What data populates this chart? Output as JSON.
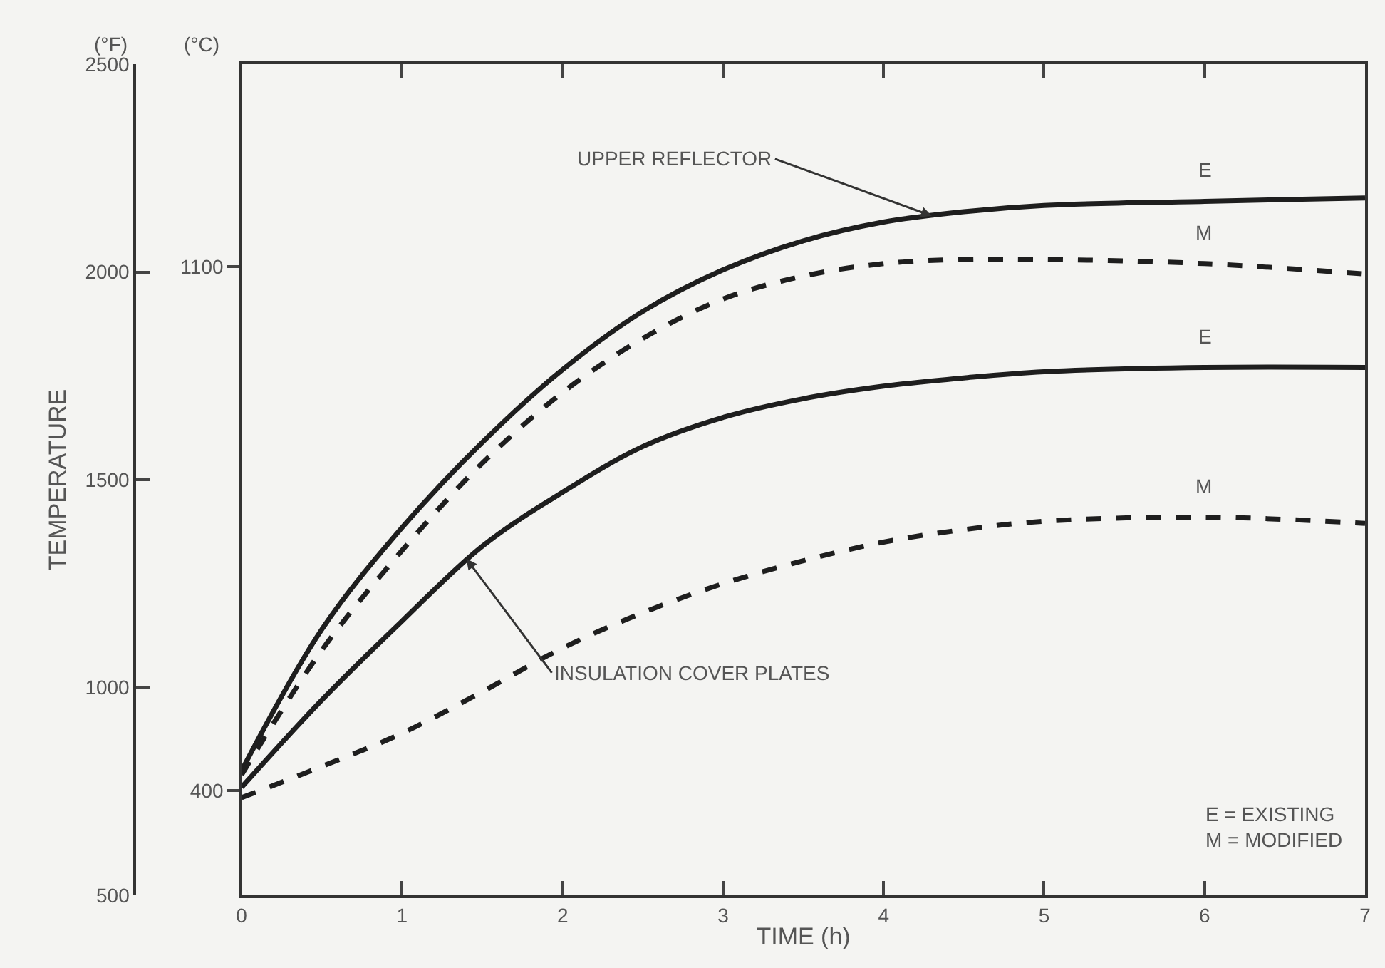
{
  "chart_data": {
    "type": "line",
    "xlabel": "TIME (h)",
    "ylabel": "TEMPERATURE",
    "x": [
      0,
      0.5,
      1,
      1.5,
      2,
      2.5,
      3,
      3.5,
      4,
      4.5,
      5,
      6,
      7
    ],
    "series": [
      {
        "name": "E",
        "color": "#1e1e1e",
        "line_style": "solid",
        "values": [
          800,
          1140,
          1385,
          1590,
          1765,
          1905,
          2005,
          2075,
          2120,
          2145,
          2160,
          2170,
          2178
        ]
      },
      {
        "name": "M",
        "color": "#1e1e1e",
        "line_style": "dashed",
        "values": [
          790,
          1090,
          1330,
          1540,
          1710,
          1840,
          1935,
          1990,
          2020,
          2030,
          2030,
          2020,
          1995
        ]
      },
      {
        "name": "E",
        "color": "#1e1e1e",
        "line_style": "solid",
        "values": [
          760,
          970,
          1160,
          1340,
          1470,
          1580,
          1650,
          1695,
          1725,
          1745,
          1760,
          1770,
          1770
        ]
      },
      {
        "name": "M",
        "color": "#1e1e1e",
        "line_style": "dashed",
        "values": [
          735,
          810,
          890,
          990,
          1095,
          1180,
          1250,
          1305,
          1350,
          1380,
          1400,
          1410,
          1395
        ]
      }
    ],
    "xlim": [
      0,
      7
    ],
    "xticks": [
      0,
      1,
      2,
      3,
      4,
      5,
      6,
      7
    ],
    "ylim": [
      500,
      2500
    ],
    "yticks": [
      500,
      1000,
      1500,
      2000,
      2500
    ],
    "y2lim": [
      260,
      1371
    ],
    "y2ticks": [
      400,
      1100
    ],
    "annotations": [
      "(°F)",
      "(°C)",
      "E = EXISTING\nM = MODIFIED",
      {
        "text": "UPPER REFLECTOR",
        "x": 4.3,
        "y": 2135
      },
      {
        "text": "INSULATION COVER PLATES",
        "x": 1.4,
        "y": 1310
      }
    ],
    "grid": false,
    "legend": false,
    "marker": "none"
  }
}
